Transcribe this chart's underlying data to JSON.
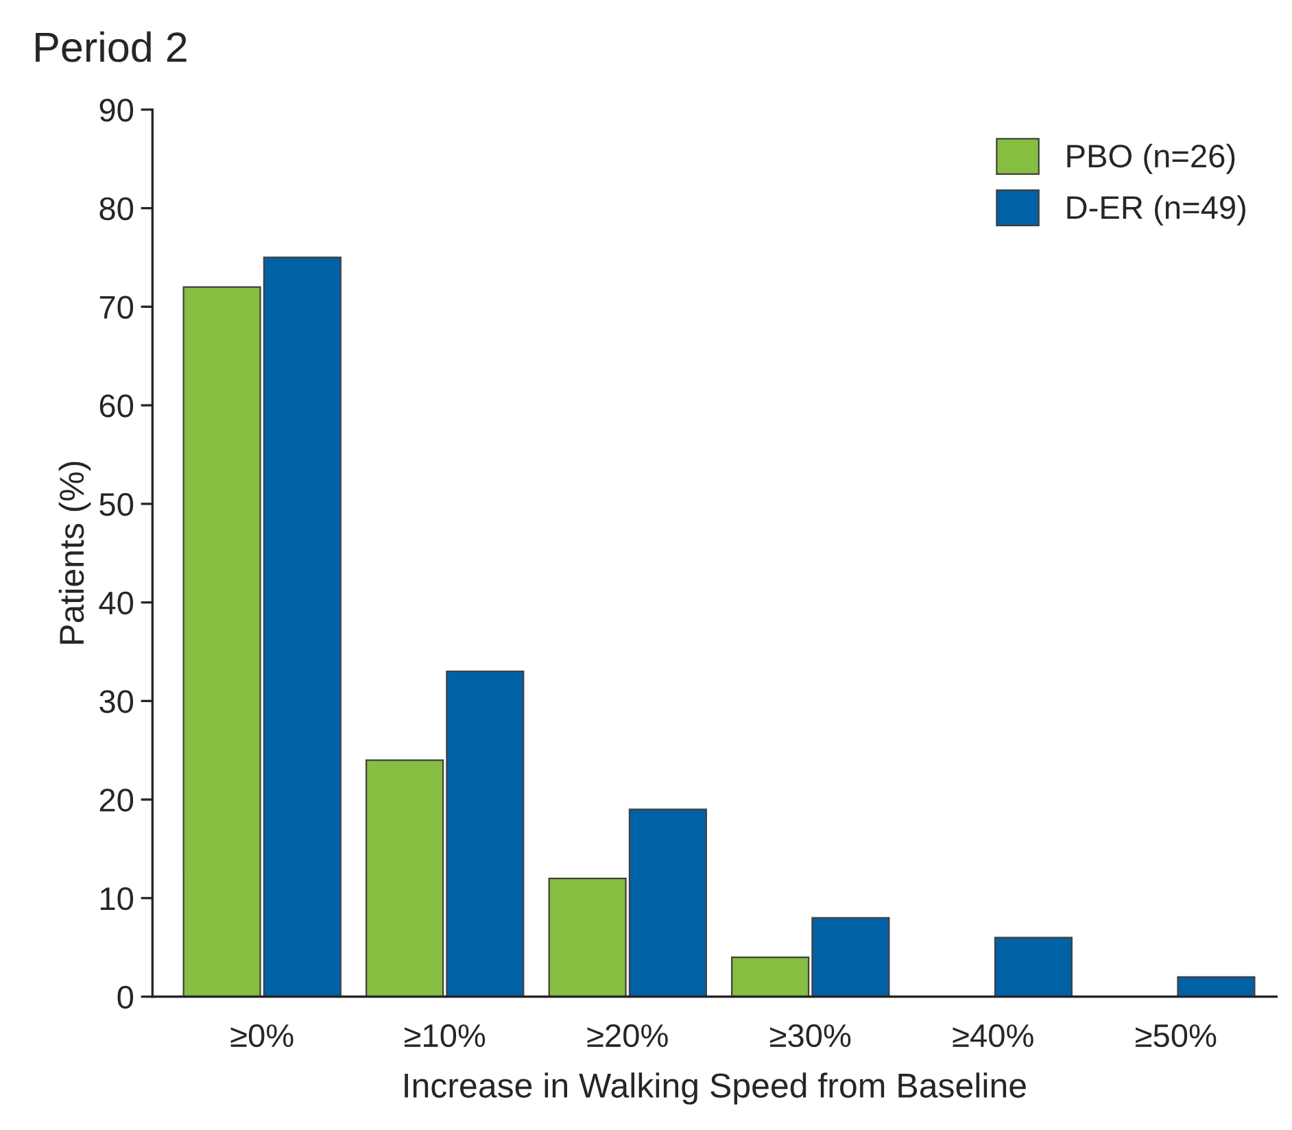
{
  "chart_data": {
    "type": "bar",
    "title": "Period 2",
    "xlabel": "Increase in Walking Speed from Baseline",
    "ylabel": "Patients (%)",
    "categories": [
      "≥0%",
      "≥10%",
      "≥20%",
      "≥30%",
      "≥40%",
      "≥50%"
    ],
    "series": [
      {
        "name": "PBO (n=26)",
        "color": "#86bf41",
        "values": [
          72,
          24,
          12,
          4,
          null,
          null
        ]
      },
      {
        "name": "D-ER (n=49)",
        "color": "#0062a5",
        "values": [
          75,
          33,
          19,
          8,
          6,
          2
        ]
      }
    ],
    "ylim": [
      0,
      90
    ],
    "yticks": [
      0,
      10,
      20,
      30,
      40,
      50,
      60,
      70,
      80,
      90
    ],
    "grid": false,
    "legend": "top right"
  }
}
